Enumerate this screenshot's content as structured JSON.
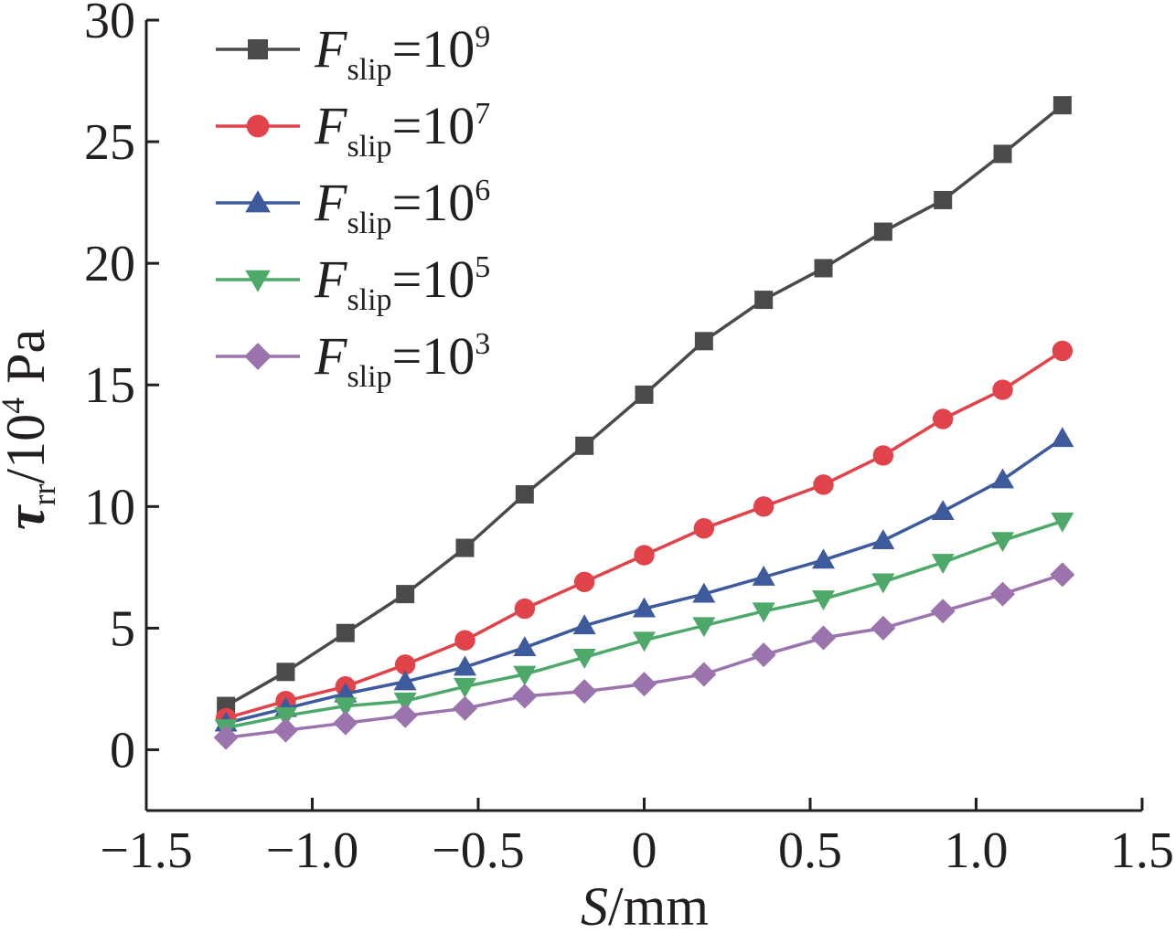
{
  "chart_data": {
    "type": "line",
    "xlabel": {
      "var": "S",
      "unit": "/mm"
    },
    "ylabel": {
      "var": "τ",
      "sub": "rr",
      "unit_pre": "/10",
      "unit_sup": "4",
      "unit_post": " Pa"
    },
    "xlim": [
      -1.5,
      1.5
    ],
    "ylim": [
      -2.5,
      30
    ],
    "xticks": [
      -1.5,
      -1.0,
      -0.5,
      0,
      0.5,
      1.0,
      1.5
    ],
    "xtick_labels": [
      "−1.5",
      "−1.0",
      "−0.5",
      "0",
      "0.5",
      "1.0",
      "1.5"
    ],
    "yticks": [
      0,
      5,
      10,
      15,
      20,
      25,
      30
    ],
    "ytick_labels": [
      "0",
      "5",
      "10",
      "15",
      "20",
      "25",
      "30"
    ],
    "grid": false,
    "legend_position": "top-left",
    "x": [
      -1.26,
      -1.08,
      -0.9,
      -0.72,
      -0.54,
      -0.36,
      -0.18,
      0,
      0.18,
      0.36,
      0.54,
      0.72,
      0.9,
      1.08,
      1.26
    ],
    "series": [
      {
        "name_var": "F",
        "name_sub": "slip",
        "name_eq": "=10",
        "name_sup": "9",
        "color": "#4a4a4a",
        "marker": "square",
        "values": [
          1.8,
          3.2,
          4.8,
          6.4,
          8.3,
          10.5,
          12.5,
          14.6,
          16.8,
          18.5,
          19.8,
          21.3,
          22.6,
          24.5,
          26.5
        ]
      },
      {
        "name_var": "F",
        "name_sub": "slip",
        "name_eq": "=10",
        "name_sup": "7",
        "color": "#e0434a",
        "marker": "circle",
        "values": [
          1.3,
          2.0,
          2.6,
          3.5,
          4.5,
          5.8,
          6.9,
          8.0,
          9.1,
          10.0,
          10.9,
          12.1,
          13.6,
          14.8,
          16.4
        ]
      },
      {
        "name_var": "F",
        "name_sub": "slip",
        "name_eq": "=10",
        "name_sup": "6",
        "color": "#3d5a9c",
        "marker": "triangle-up",
        "values": [
          1.1,
          1.7,
          2.3,
          2.8,
          3.4,
          4.2,
          5.1,
          5.8,
          6.4,
          7.1,
          7.8,
          8.6,
          9.8,
          11.1,
          12.8
        ]
      },
      {
        "name_var": "F",
        "name_sub": "slip",
        "name_eq": "=10",
        "name_sup": "5",
        "color": "#4da86a",
        "marker": "triangle-down",
        "values": [
          0.9,
          1.4,
          1.8,
          2.0,
          2.6,
          3.1,
          3.8,
          4.5,
          5.1,
          5.7,
          6.2,
          6.9,
          7.7,
          8.6,
          9.4
        ]
      },
      {
        "name_var": "F",
        "name_sub": "slip",
        "name_eq": "=10",
        "name_sup": "3",
        "color": "#9b73ad",
        "marker": "diamond",
        "values": [
          0.5,
          0.8,
          1.1,
          1.4,
          1.7,
          2.2,
          2.4,
          2.7,
          3.1,
          3.9,
          4.6,
          5.0,
          5.7,
          6.4,
          7.2
        ]
      }
    ]
  }
}
